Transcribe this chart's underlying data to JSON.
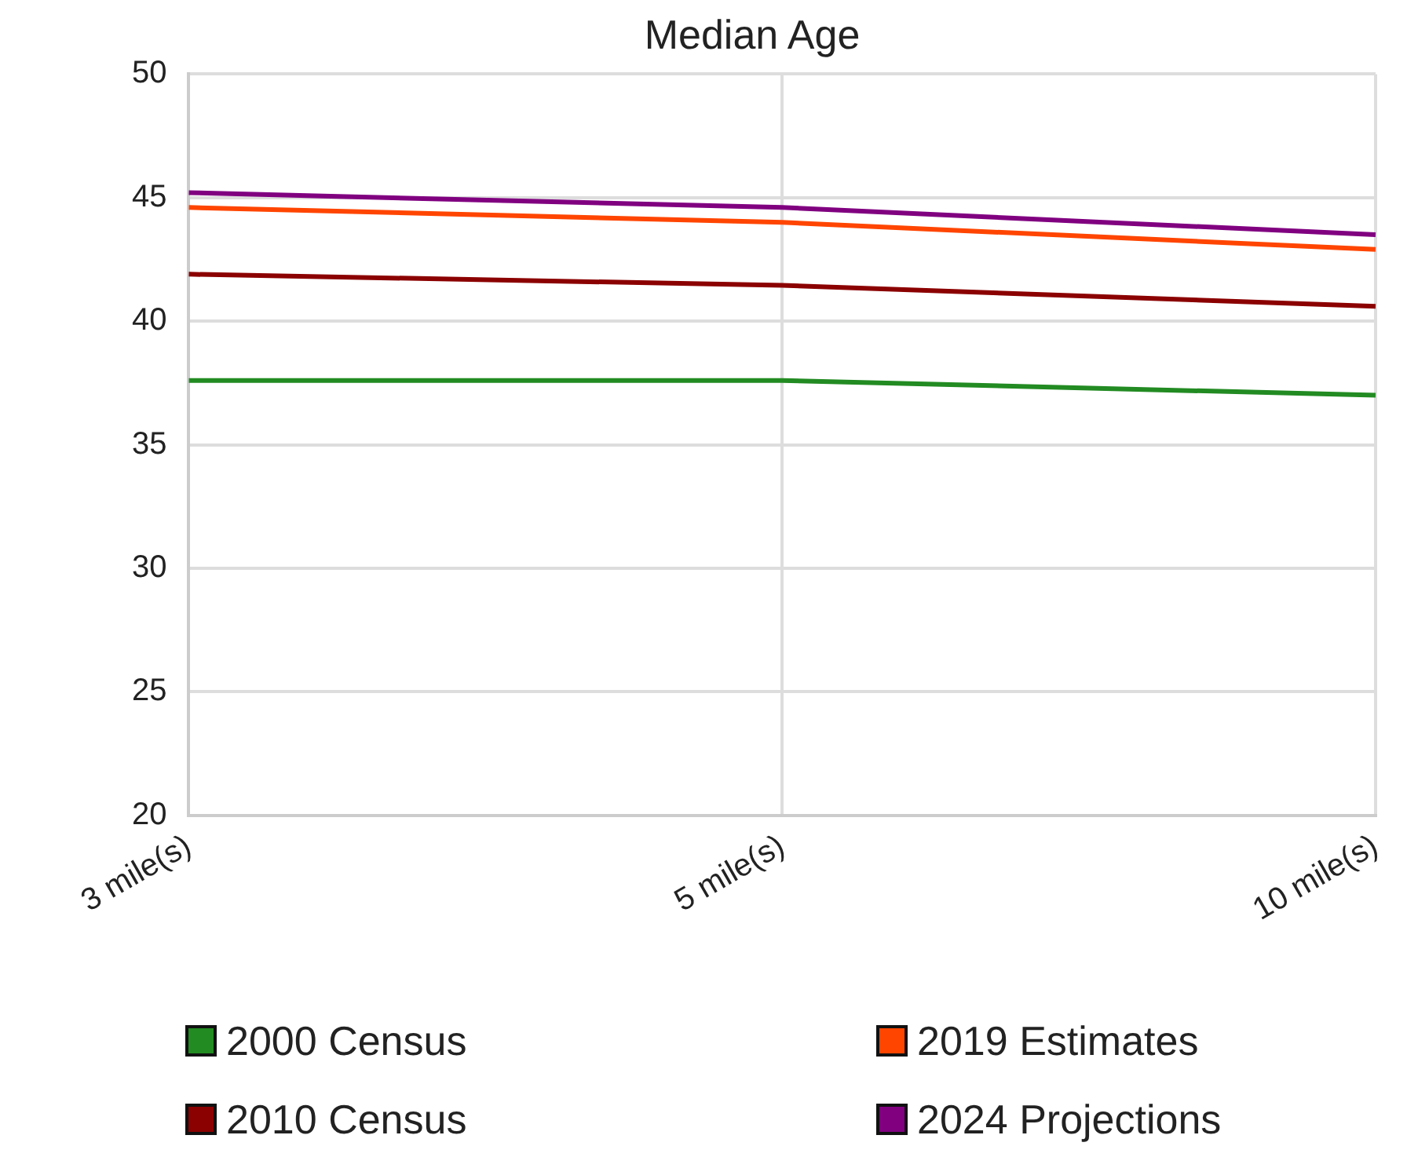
{
  "chart_data": {
    "type": "line",
    "title": "Median Age",
    "categories": [
      "3 mile(s)",
      "5 mile(s)",
      "10 mile(s)"
    ],
    "series": [
      {
        "name": "2000 Census",
        "color": "#228b22",
        "values": [
          37.6,
          37.6,
          37.0
        ]
      },
      {
        "name": "2019 Estimates",
        "color": "#ff4500",
        "values": [
          44.6,
          44.0,
          42.9
        ]
      },
      {
        "name": "2010 Census",
        "color": "#8b0000",
        "values": [
          41.9,
          41.45,
          40.6
        ]
      },
      {
        "name": "2024 Projections",
        "color": "#800080",
        "values": [
          45.2,
          44.6,
          43.5
        ]
      }
    ],
    "ylim": [
      20,
      50
    ],
    "yticks": [
      20,
      25,
      30,
      35,
      40,
      45,
      50
    ],
    "grid": true,
    "legend": "bottom",
    "marker": "none",
    "line_style": "solid"
  }
}
